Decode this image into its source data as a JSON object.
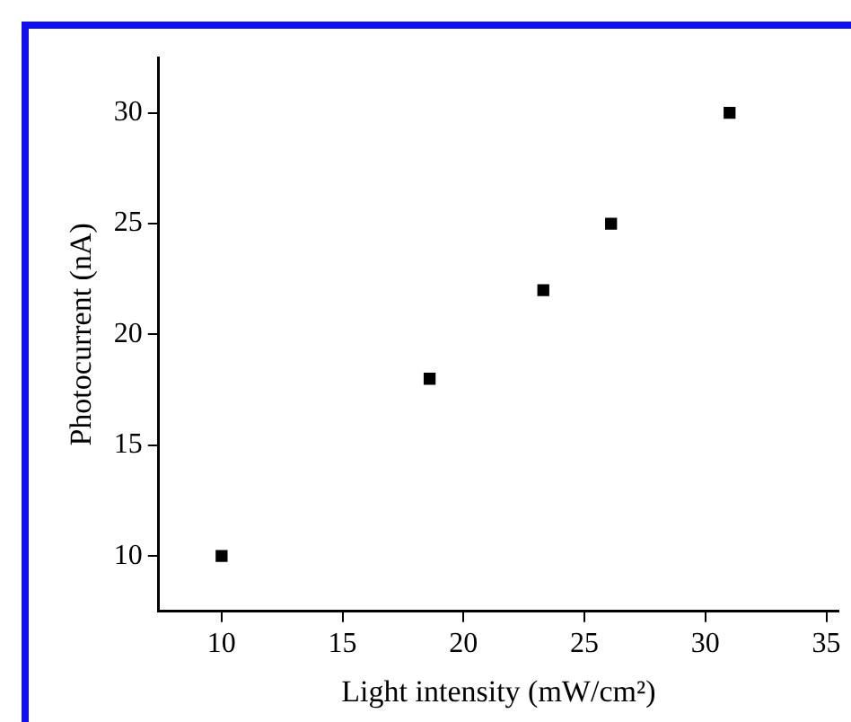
{
  "chart_data": {
    "type": "scatter",
    "xlabel": "Light intensity (mW/cm²)",
    "ylabel": "Photocurrent (nA)",
    "x": [
      10,
      18.6,
      23.3,
      26.1,
      31
    ],
    "values": [
      10,
      18,
      22,
      25,
      30
    ],
    "color": "#000000",
    "marker": "square",
    "xlim": [
      7.4,
      35.5
    ],
    "xticks": [
      10,
      15,
      20,
      25,
      30,
      35
    ],
    "ylim": [
      7.5,
      32.5
    ],
    "yticks": [
      10,
      15,
      20,
      25,
      30
    ],
    "grid": false,
    "legend": false
  }
}
